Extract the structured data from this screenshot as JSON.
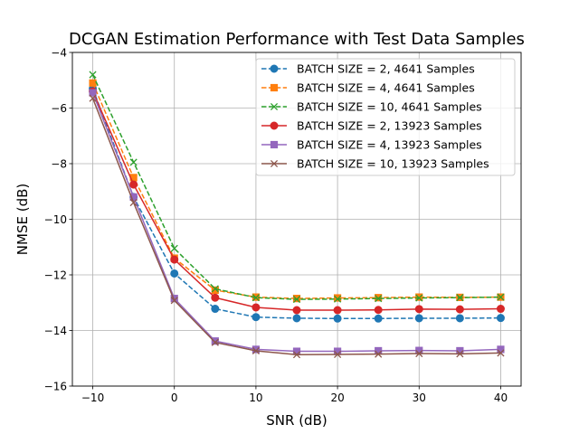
{
  "chart_data": {
    "type": "line",
    "title": "DCGAN Estimation Performance with Test Data Samples",
    "xlabel": "SNR (dB)",
    "ylabel": "NMSE (dB)",
    "xlim": [
      -12.5,
      42.5
    ],
    "ylim": [
      -16,
      -4
    ],
    "xticks": [
      -10,
      0,
      10,
      20,
      30,
      40
    ],
    "xtick_labels": [
      "−10",
      "0",
      "10",
      "20",
      "30",
      "40"
    ],
    "yticks": [
      -16,
      -14,
      -12,
      -10,
      -8,
      -6,
      -4
    ],
    "ytick_labels": [
      "−16",
      "−14",
      "−12",
      "−10",
      "−8",
      "−6",
      "−4"
    ],
    "grid": true,
    "legend_position": "top-right",
    "x": [
      -10,
      -5,
      0,
      5,
      10,
      15,
      20,
      25,
      30,
      35,
      40
    ],
    "series": [
      {
        "name": "BATCH SIZE = 2, 4641 Samples",
        "color": "#1f77b4",
        "linestyle": "dashed",
        "marker": "circle",
        "values": [
          -5.3,
          -9.2,
          -11.95,
          -13.22,
          -13.52,
          -13.56,
          -13.57,
          -13.57,
          -13.56,
          -13.56,
          -13.55
        ]
      },
      {
        "name": "BATCH SIZE = 4, 4641 Samples",
        "color": "#ff7f0e",
        "linestyle": "dashed",
        "marker": "square",
        "values": [
          -5.1,
          -8.5,
          -11.4,
          -12.55,
          -12.8,
          -12.85,
          -12.83,
          -12.82,
          -12.8,
          -12.81,
          -12.8
        ]
      },
      {
        "name": "BATCH SIZE = 10, 4641 Samples",
        "color": "#2ca02c",
        "linestyle": "dashed",
        "marker": "x",
        "values": [
          -4.8,
          -7.95,
          -11.05,
          -12.5,
          -12.82,
          -12.88,
          -12.87,
          -12.85,
          -12.83,
          -12.82,
          -12.8
        ]
      },
      {
        "name": "BATCH SIZE = 2, 13923 Samples",
        "color": "#d62728",
        "linestyle": "solid",
        "marker": "circle",
        "values": [
          -5.4,
          -8.75,
          -11.45,
          -12.82,
          -13.17,
          -13.27,
          -13.27,
          -13.26,
          -13.23,
          -13.24,
          -13.22
        ]
      },
      {
        "name": "BATCH SIZE = 4, 13923 Samples",
        "color": "#9467bd",
        "linestyle": "solid",
        "marker": "square",
        "values": [
          -5.45,
          -9.2,
          -12.85,
          -14.38,
          -14.68,
          -14.75,
          -14.75,
          -14.73,
          -14.72,
          -14.73,
          -14.68
        ]
      },
      {
        "name": "BATCH SIZE = 10, 13923 Samples",
        "color": "#8c564b",
        "linestyle": "solid",
        "marker": "x",
        "values": [
          -5.65,
          -9.4,
          -12.92,
          -14.43,
          -14.73,
          -14.87,
          -14.86,
          -14.85,
          -14.83,
          -14.84,
          -14.81
        ]
      }
    ]
  }
}
